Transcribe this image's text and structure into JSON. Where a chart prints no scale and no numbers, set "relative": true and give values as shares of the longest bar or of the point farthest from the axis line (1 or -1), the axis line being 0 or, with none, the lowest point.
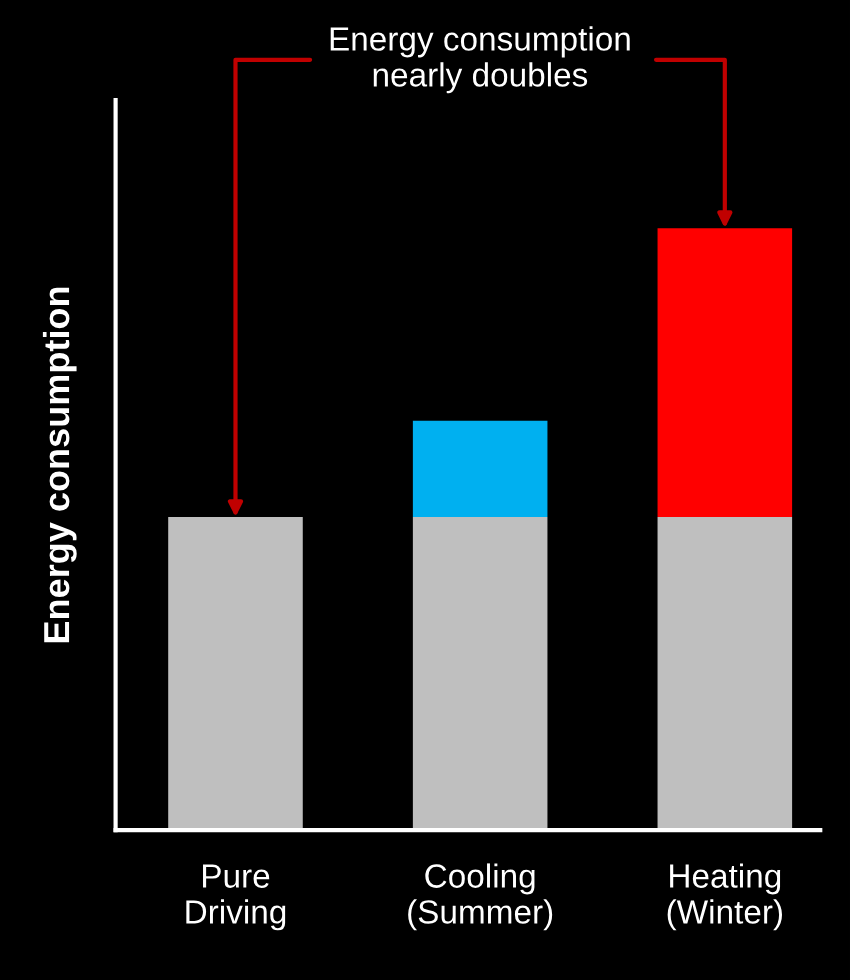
{
  "chart_data": {
    "type": "bar",
    "stacked": true,
    "relative": true,
    "ylabel": "Energy consumption",
    "categories": [
      "Pure\nDriving",
      "Cooling\n(Summer)",
      "Heating\n(Winter)"
    ],
    "series": [
      {
        "color": "#bfbfbf",
        "values": [
          0.52,
          0.52,
          0.52
        ]
      },
      {
        "color": "#00b0f0",
        "values": [
          null,
          0.16,
          null
        ]
      },
      {
        "color": "#ff0000",
        "values": [
          null,
          null,
          0.48
        ]
      }
    ],
    "annotations": [
      "Energy consumption\nnearly doubles"
    ],
    "grid": false,
    "legend": false
  }
}
